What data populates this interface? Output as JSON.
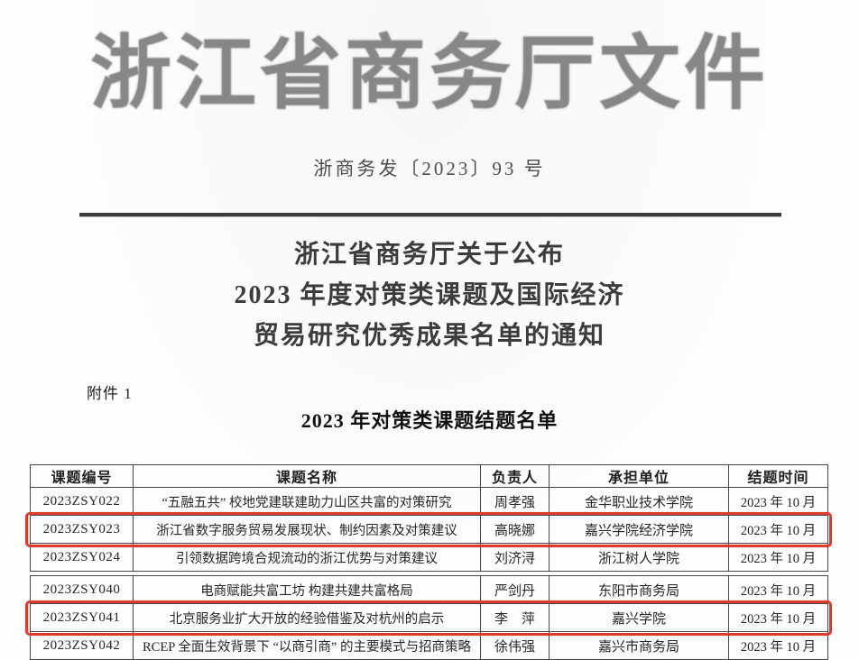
{
  "document": {
    "letterhead": "浙江省商务厅文件",
    "doc_number": "浙商务发〔2023〕93 号",
    "notice_title_lines": [
      "浙江省商务厅关于公布",
      "2023 年度对策类课题及国际经济",
      "贸易研究优秀成果名单的通知"
    ],
    "attachment_label": "附件 1",
    "list_title": "2023 年对策类课题结题名单"
  },
  "table": {
    "headers": [
      "课题编号",
      "课题名称",
      "负责人",
      "承担单位",
      "结题时间"
    ],
    "page_break_after": "2023ZSY024",
    "rows": [
      {
        "id": "2023ZSY022",
        "name": "“五融五共” 校地党建联建助力山区共富的对策研究",
        "leader": "周孝强",
        "unit": "金华职业技术学院",
        "date": "2023 年 10 月",
        "highlighted": false
      },
      {
        "id": "2023ZSY023",
        "name": "浙江省数字服务贸易发展现状、制约因素及对策建议",
        "leader": "高晓娜",
        "unit": "嘉兴学院经济学院",
        "date": "2023 年 10 月",
        "highlighted": true
      },
      {
        "id": "2023ZSY024",
        "name": "引领数据跨境合规流动的浙江优势与对策建议",
        "leader": "刘济浔",
        "unit": "浙江树人学院",
        "date": "2023 年 10 月",
        "highlighted": false
      },
      {
        "id": "2023ZSY040",
        "name": "电商赋能共富工坊  构建共建共富格局",
        "leader": "严剑丹",
        "unit": "东阳市商务局",
        "date": "2023 年 10 月",
        "highlighted": false
      },
      {
        "id": "2023ZSY041",
        "name": "北京服务业扩大开放的经验借鉴及对杭州的启示",
        "leader": "李　萍",
        "unit": "嘉兴学院",
        "date": "2023 年 10 月",
        "highlighted": true
      },
      {
        "id": "2023ZSY042",
        "name": "RCEP 全面生效背景下 “以商引商” 的主要模式与招商策略",
        "leader": "徐伟强",
        "unit": "嘉兴市商务局",
        "date": "2023 年 10 月",
        "highlighted": false
      }
    ]
  },
  "colors": {
    "highlight_border": "#e03a2b",
    "letterhead_gray": "#878787",
    "rule_dark": "#3c3c3c"
  }
}
